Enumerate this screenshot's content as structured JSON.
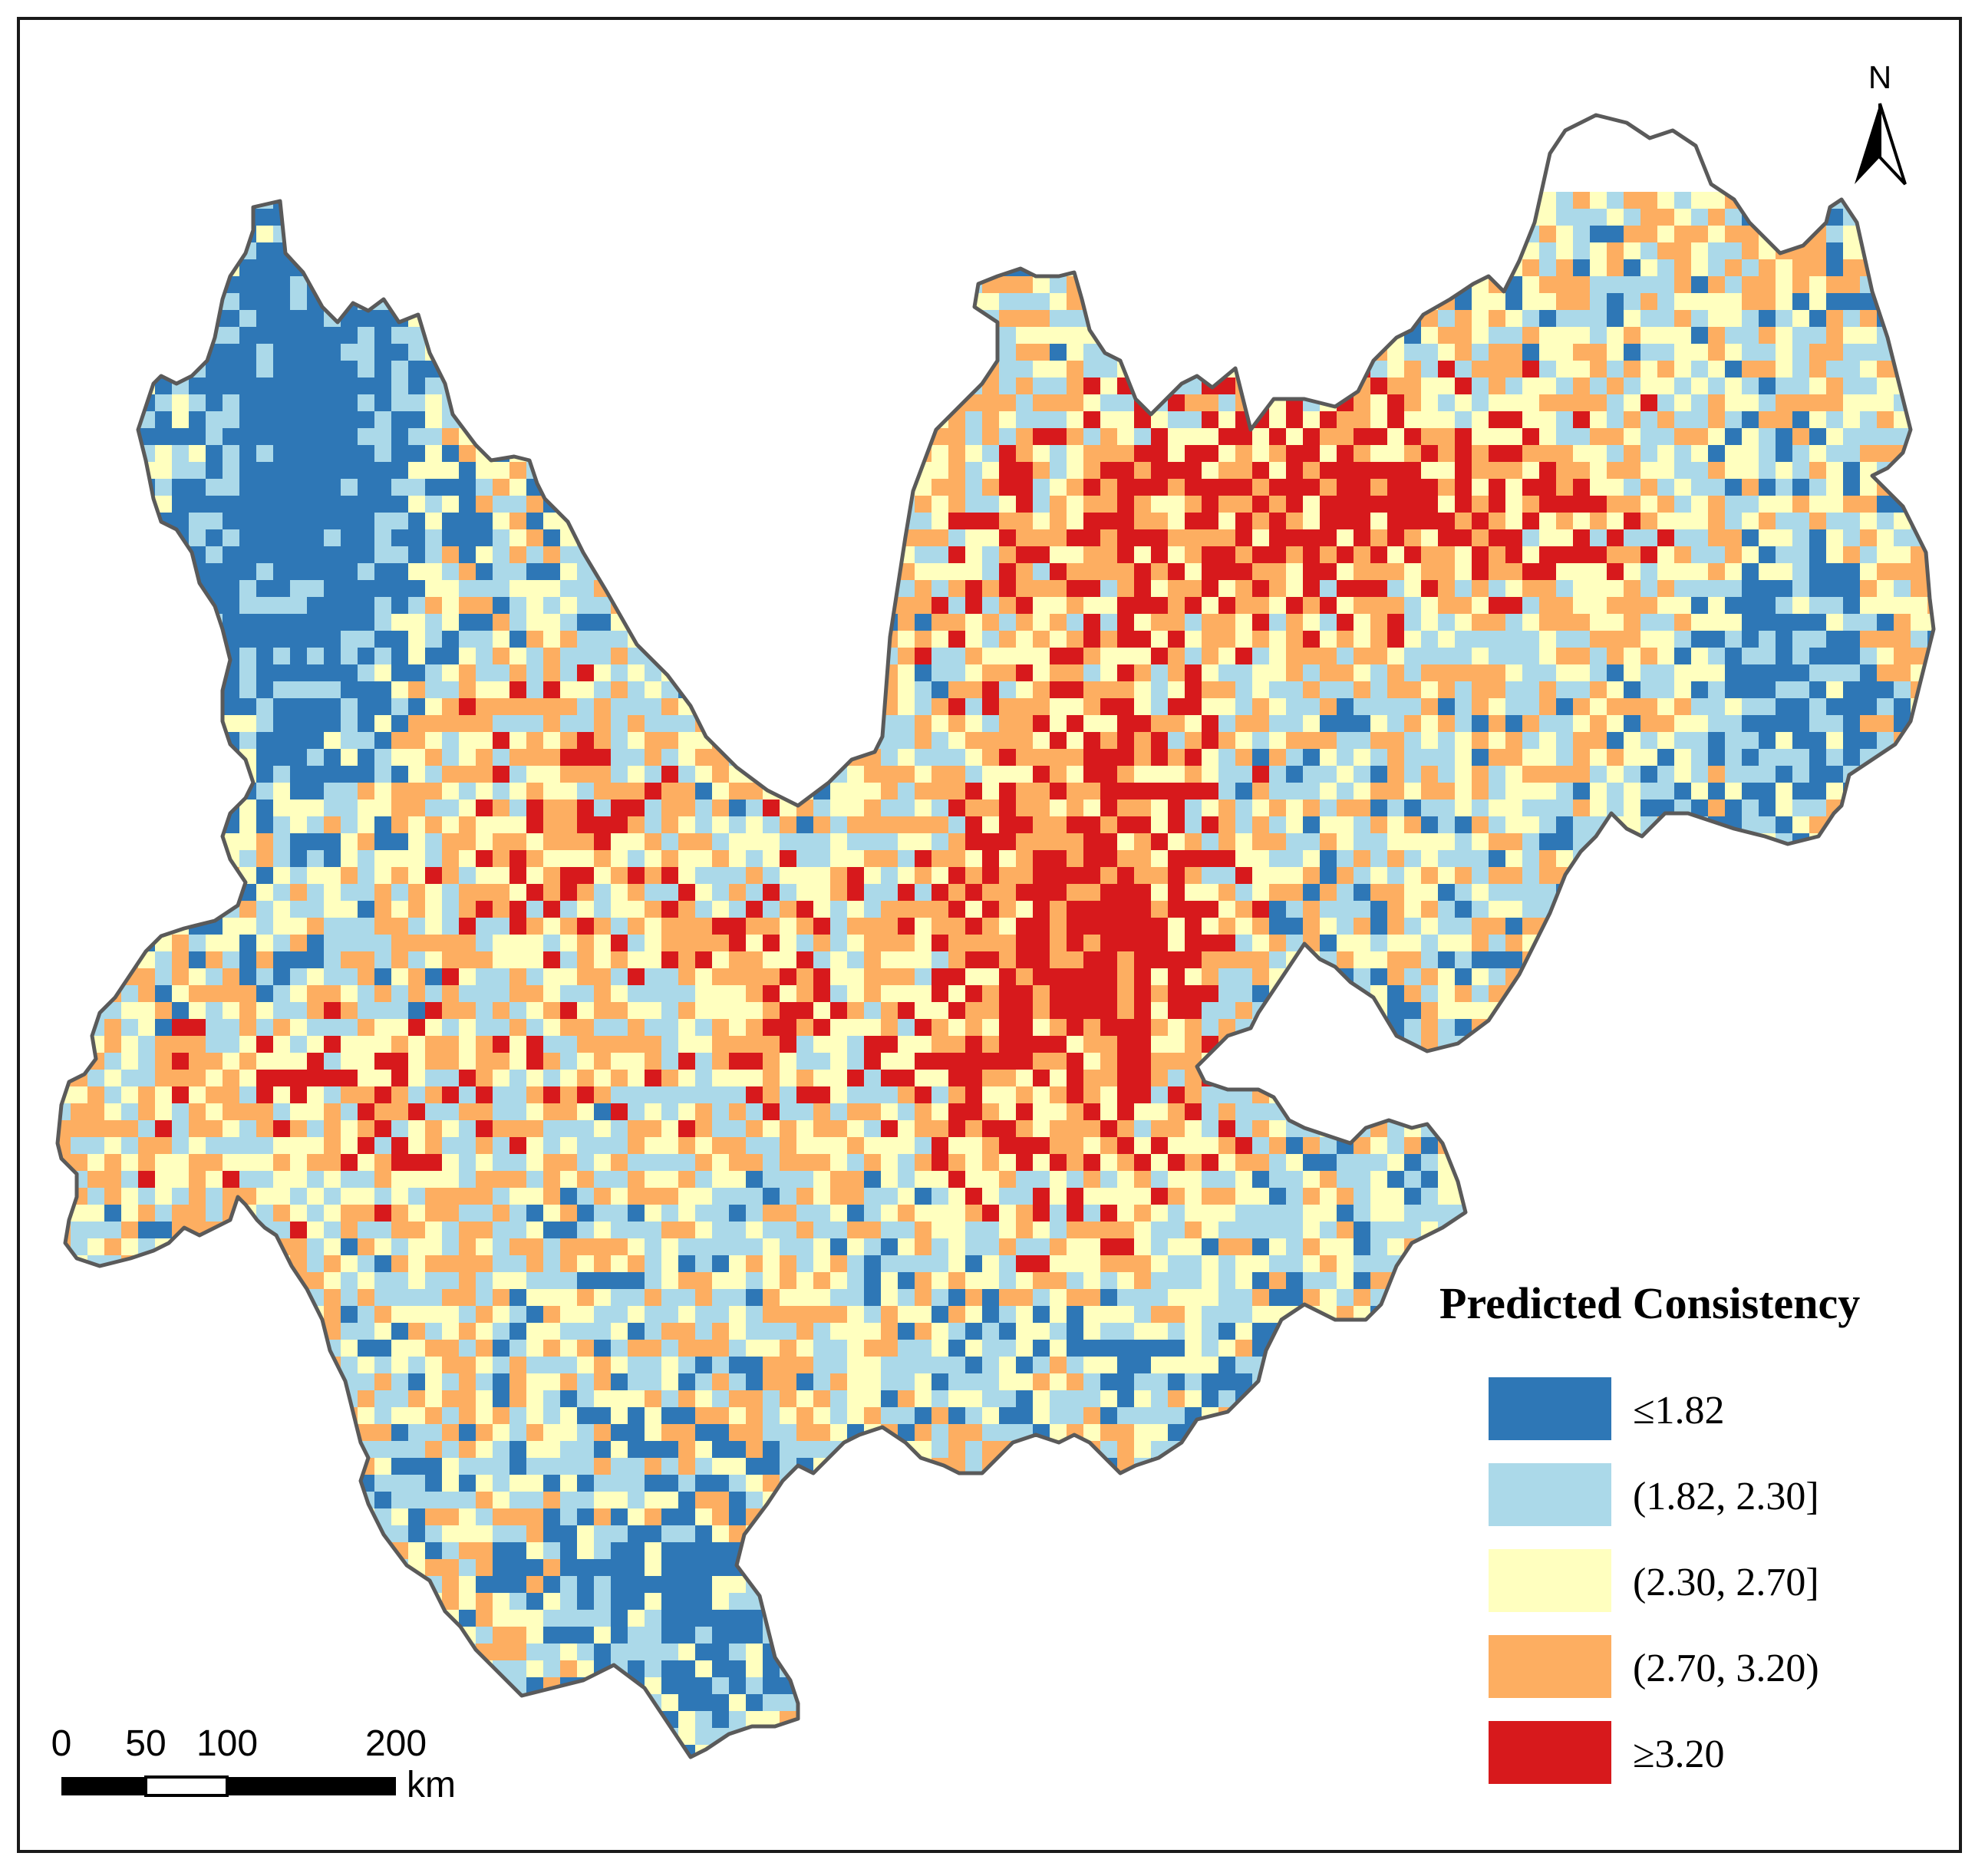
{
  "legend": {
    "title": "Predicted Consistency",
    "classes": [
      {
        "label": "≤1.82",
        "color": "#2e77b6"
      },
      {
        "label": "(1.82, 2.30]",
        "color": "#abd9e9"
      },
      {
        "label": "(2.30, 2.70]",
        "color": "#ffffbf"
      },
      {
        "label": "(2.70, 3.20)",
        "color": "#fdae61"
      },
      {
        "label": "≥3.20",
        "color": "#d7191c"
      }
    ]
  },
  "scale_bar": {
    "ticks": [
      "0",
      "50",
      "100",
      "200"
    ],
    "unit": "km"
  },
  "north_arrow": {
    "label": "N",
    "icon": "north-arrow-icon"
  },
  "boundary_color": "#5a5a5a"
}
